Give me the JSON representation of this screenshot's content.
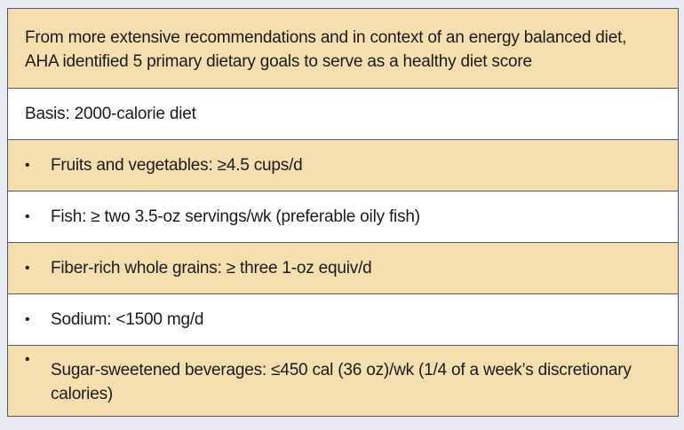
{
  "box": {
    "header": "From more extensive recommendations and in context of an energy balanced diet, AHA identified 5 primary dietary goals to serve as a healthy diet score",
    "basis": "Basis: 2000-calorie diet",
    "bullet": "•",
    "items": [
      "Fruits and vegetables: ≥4.5 cups/d",
      "Fish: ≥ two 3.5-oz servings/wk (preferable oily fish)",
      "Fiber-rich whole grains: ≥ three 1-oz equiv/d",
      "Sodium: <1500 mg/d",
      "Sugar-sweetened beverages: ≤450 cal (36 oz)/wk (1/4 of a week’s discretionary calories)"
    ]
  },
  "colors": {
    "tan_row": "#f6dfae",
    "white_row": "#ffffff",
    "border": "#55585f",
    "page_background": "#e8e9f3"
  }
}
